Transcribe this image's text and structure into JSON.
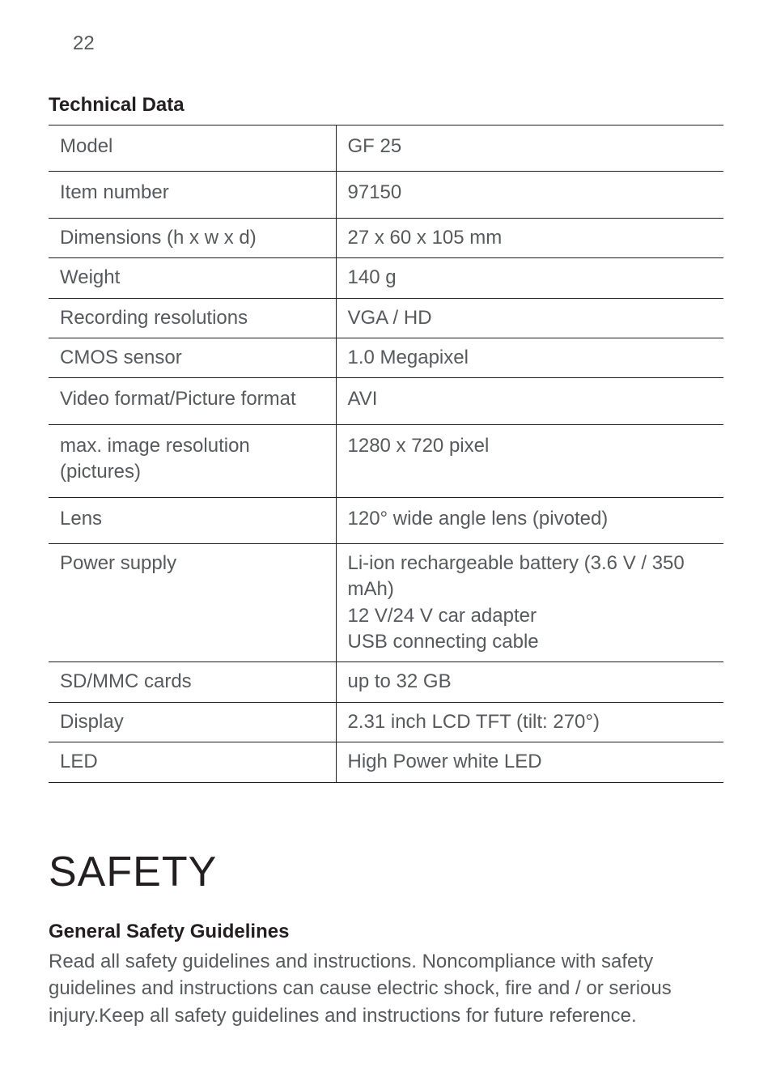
{
  "page_number": "22",
  "tech_heading": "Technical Data",
  "specs": [
    {
      "label": "Model",
      "value": "GF 25",
      "tall": true
    },
    {
      "label": "Item number",
      "value": "97150",
      "tall": true
    },
    {
      "label": "Dimensions (h x w x d)",
      "value": "27 x 60 x 105 mm",
      "tall": false
    },
    {
      "label": "Weight",
      "value": "140 g",
      "tall": false
    },
    {
      "label": "Recording resolutions",
      "value": "VGA / HD",
      "tall": false
    },
    {
      "label": "CMOS sensor",
      "value": "1.0 Megapixel",
      "tall": false
    },
    {
      "label": "Video format/Picture format",
      "value": "AVI",
      "tall": true
    },
    {
      "label": "max. image resolution (pictures)",
      "value": "1280 x 720 pixel",
      "tall": true
    },
    {
      "label": "Lens",
      "value": "120° wide angle lens (pivoted)",
      "tall": true
    },
    {
      "label": "Power supply",
      "value": "Li-ion rechargeable battery (3.6 V / 350 mAh)\n12 V/24 V car adapter\nUSB connecting cable",
      "tall": false
    },
    {
      "label": "SD/MMC cards",
      "value": "up to 32 GB",
      "tall": false
    },
    {
      "label": "Display",
      "value": "2.31 inch LCD TFT (tilt: 270°)",
      "tall": false
    },
    {
      "label": "LED",
      "value": "High Power white LED",
      "tall": false
    }
  ],
  "safety_heading": "SAFETY",
  "guidelines_heading": "General Safety Guidelines",
  "guidelines_body": "Read all safety guidelines and instructions. Noncompliance with safety guidelines and instructions can cause electric shock, fire and / or serious injury.Keep all safety guidelines and instructions for future reference."
}
